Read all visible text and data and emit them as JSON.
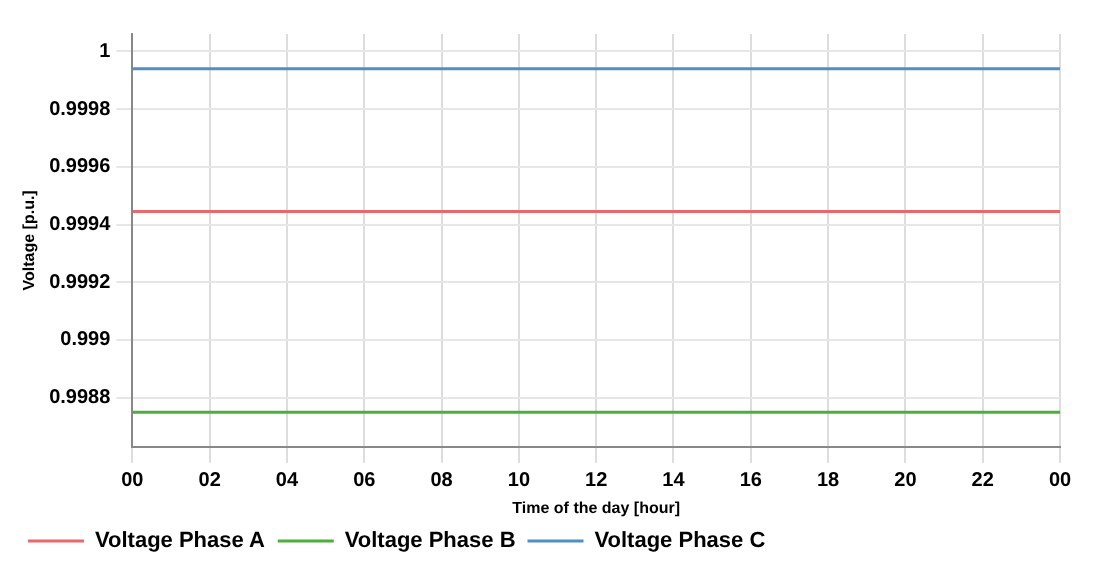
{
  "chart_data": {
    "type": "line",
    "xlabel": "Time of the day [hour]",
    "ylabel": "Voltage [p.u.]",
    "x": [
      0,
      24
    ],
    "series": [
      {
        "name": "Voltage Phase A",
        "color": "#e8686b",
        "values": [
          0.999445,
          0.999445
        ]
      },
      {
        "name": "Voltage Phase B",
        "color": "#4caf3d",
        "values": [
          0.99875,
          0.99875
        ]
      },
      {
        "name": "Voltage Phase C",
        "color": "#4f8fc4",
        "values": [
          0.99994,
          0.99994
        ]
      }
    ],
    "xlim": [
      0,
      24
    ],
    "xticks": [
      {
        "value": 0,
        "label": "00"
      },
      {
        "value": 2,
        "label": "02"
      },
      {
        "value": 4,
        "label": "04"
      },
      {
        "value": 6,
        "label": "06"
      },
      {
        "value": 8,
        "label": "08"
      },
      {
        "value": 10,
        "label": "10"
      },
      {
        "value": 12,
        "label": "12"
      },
      {
        "value": 14,
        "label": "14"
      },
      {
        "value": 16,
        "label": "16"
      },
      {
        "value": 18,
        "label": "18"
      },
      {
        "value": 20,
        "label": "20"
      },
      {
        "value": 22,
        "label": "22"
      },
      {
        "value": 24,
        "label": "00"
      }
    ],
    "ylim": [
      0.99863,
      1.00006
    ],
    "yticks": [
      0.9988,
      0.999,
      0.9992,
      0.9994,
      0.9996,
      0.9998,
      1
    ],
    "grid": true,
    "legend": "bottom",
    "marker": "none",
    "line_style": "solid"
  }
}
